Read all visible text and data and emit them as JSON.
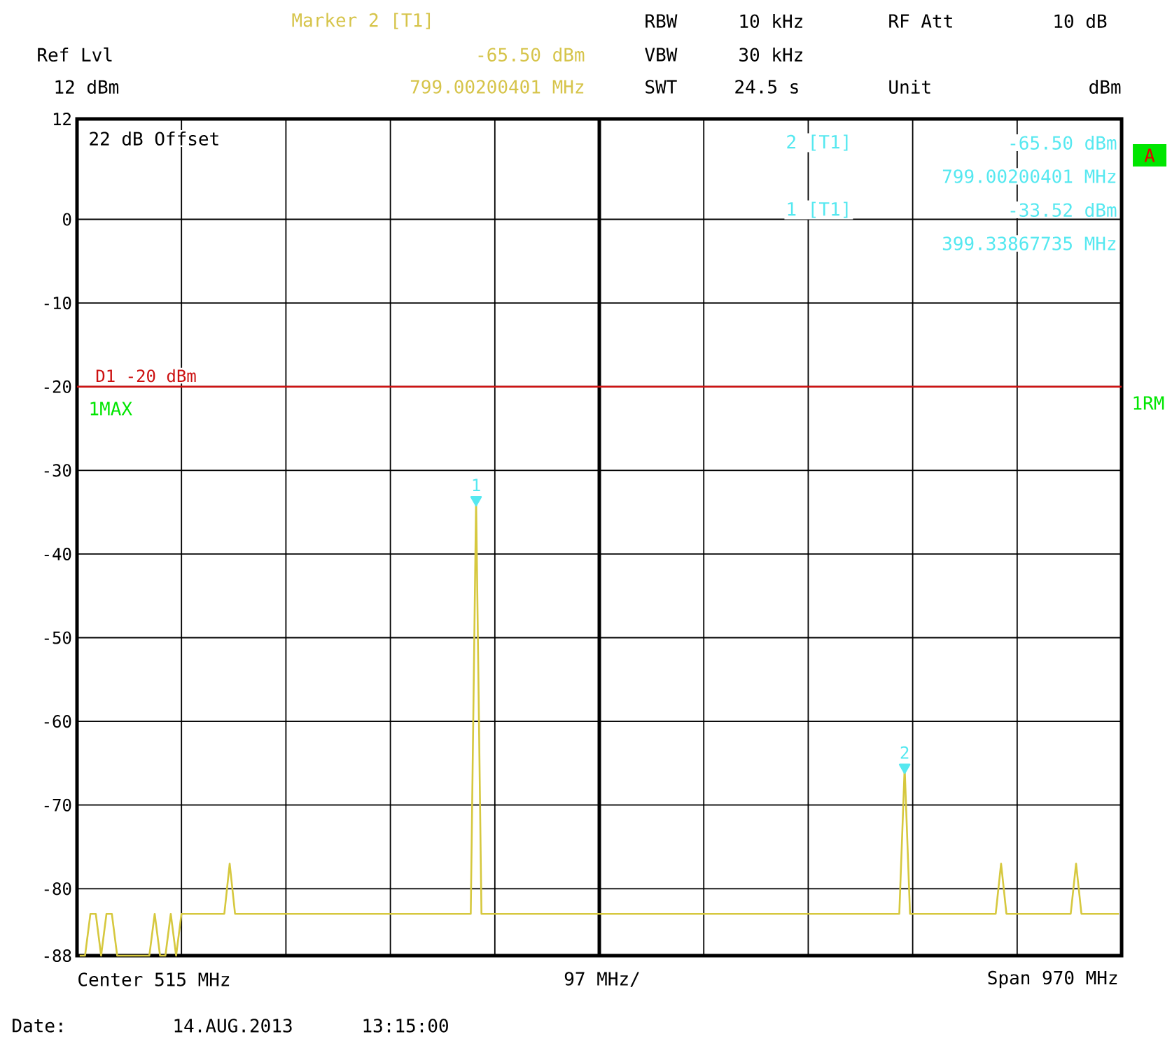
{
  "chart_data": {
    "type": "line",
    "ylim": [
      -88,
      12
    ],
    "yticks": [
      -88,
      -80,
      -70,
      -60,
      -50,
      -40,
      -30,
      -20,
      -10,
      0,
      12
    ],
    "tick_labels": "y",
    "grid": true,
    "categories": [
      null,
      null,
      null,
      null,
      null,
      null,
      null,
      null,
      null,
      null,
      null,
      null,
      null,
      null,
      null,
      null,
      null,
      null,
      null,
      null,
      null,
      null,
      null,
      null,
      null,
      null,
      null,
      null,
      null,
      null,
      null,
      null,
      null,
      null,
      null,
      null,
      null,
      null,
      null,
      null,
      null,
      null,
      null,
      null,
      null,
      null,
      null,
      null,
      null,
      null,
      null,
      null,
      null,
      null,
      null,
      null,
      null,
      null,
      null,
      null,
      null,
      null,
      null,
      null,
      null,
      null,
      null,
      null,
      null,
      null,
      null,
      null,
      null,
      null,
      null,
      null,
      null,
      null,
      null,
      null,
      null,
      null,
      null,
      null,
      null,
      null,
      null,
      null,
      null,
      null,
      null,
      null,
      null,
      null,
      null,
      null,
      null,
      null,
      null,
      null,
      null,
      null,
      null,
      null,
      null,
      null,
      null,
      null,
      null,
      null,
      null,
      null,
      null,
      null,
      null,
      null,
      null,
      null,
      null,
      null,
      null,
      null,
      null,
      null,
      null,
      null,
      null,
      null,
      null,
      null,
      null,
      null,
      null,
      null,
      null,
      null,
      null,
      null,
      null,
      null,
      null,
      null,
      null,
      null,
      null,
      null,
      null,
      null,
      null,
      null,
      null,
      null,
      null,
      null,
      null,
      null,
      null,
      null,
      null,
      null,
      null,
      null,
      null,
      null,
      null,
      null,
      null,
      null,
      null,
      null,
      null,
      null,
      null,
      null,
      null,
      null,
      null,
      null,
      null,
      null,
      null,
      null,
      null,
      null,
      null,
      null,
      null,
      null,
      null,
      null,
      null,
      null,
      null,
      null,
      null
    ],
    "series": [
      {
        "color": "#d6c83e",
        "values": [
          -88,
          -88,
          -83,
          -83,
          -88,
          -83,
          -83,
          -88,
          -88,
          -88,
          -88,
          -88,
          -88,
          -88,
          -83,
          -88,
          -88,
          -83,
          -88,
          -83,
          -83,
          -83,
          -83,
          -83,
          -83,
          -83,
          -83,
          -83,
          -77,
          -83,
          -83,
          -83,
          -83,
          -83,
          -83,
          -83,
          -83,
          -83,
          -83,
          -83,
          -83,
          -83,
          -83,
          -83,
          -83,
          -83,
          -83,
          -83,
          -83,
          -83,
          -83,
          -83,
          -83,
          -83,
          -83,
          -83,
          -83,
          -83,
          -83,
          -83,
          -83,
          -83,
          -83,
          -83,
          -83,
          -83,
          -83,
          -83,
          -83,
          -83,
          -83,
          -83,
          -83,
          -83,
          -33.52,
          -83,
          -83,
          -83,
          -83,
          -83,
          -83,
          -83,
          -83,
          -83,
          -83,
          -83,
          -83,
          -83,
          -83,
          -83,
          -83,
          -83,
          -83,
          -83,
          -83,
          -83,
          -83,
          -83,
          -83,
          -83,
          -83,
          -83,
          -83,
          -83,
          -83,
          -83,
          -83,
          -83,
          -83,
          -83,
          -83,
          -83,
          -83,
          -83,
          -83,
          -83,
          -83,
          -83,
          -83,
          -83,
          -83,
          -83,
          -83,
          -83,
          -83,
          -83,
          -83,
          -83,
          -83,
          -83,
          -83,
          -83,
          -83,
          -83,
          -83,
          -83,
          -83,
          -83,
          -83,
          -83,
          -83,
          -83,
          -83,
          -83,
          -83,
          -83,
          -83,
          -83,
          -83,
          -83,
          -83,
          -83,
          -83,
          -83,
          -65.5,
          -83,
          -83,
          -83,
          -83,
          -83,
          -83,
          -83,
          -83,
          -83,
          -83,
          -83,
          -83,
          -83,
          -83,
          -83,
          -83,
          -83,
          -77,
          -83,
          -83,
          -83,
          -83,
          -83,
          -83,
          -83,
          -83,
          -83,
          -83,
          -83,
          -83,
          -83,
          -77,
          -83,
          -83,
          -83,
          -83,
          -83,
          -83,
          -83,
          -83
        ]
      },
      {
        "type": "scatter",
        "color": "#55e8f0",
        "marker": "triangle",
        "values": [
          null,
          null,
          null,
          null,
          null,
          null,
          null,
          null,
          null,
          null,
          null,
          null,
          null,
          null,
          null,
          null,
          null,
          null,
          null,
          null,
          null,
          null,
          null,
          null,
          null,
          null,
          null,
          null,
          null,
          null,
          null,
          null,
          null,
          null,
          null,
          null,
          null,
          null,
          null,
          null,
          null,
          null,
          null,
          null,
          null,
          null,
          null,
          null,
          null,
          null,
          null,
          null,
          null,
          null,
          null,
          null,
          null,
          null,
          null,
          null,
          null,
          null,
          null,
          null,
          null,
          null,
          null,
          null,
          null,
          null,
          null,
          null,
          null,
          null,
          -33.52,
          null,
          null,
          null,
          null,
          null,
          null,
          null,
          null,
          null,
          null,
          null,
          null,
          null,
          null,
          null,
          null,
          null,
          null,
          null,
          null,
          null,
          null,
          null,
          null,
          null,
          null,
          null,
          null,
          null,
          null,
          null,
          null,
          null,
          null,
          null,
          null,
          null,
          null,
          null,
          null,
          null,
          null,
          null,
          null,
          null,
          null,
          null,
          null,
          null,
          null,
          null,
          null,
          null,
          null,
          null,
          null,
          null,
          null,
          null,
          null,
          null,
          null,
          null,
          null,
          null,
          null,
          null,
          null,
          null,
          null,
          null,
          null,
          null,
          null,
          null,
          null,
          null,
          null,
          null,
          -65.5,
          null,
          null,
          null,
          null,
          null,
          null,
          null,
          null,
          null,
          null,
          null,
          null,
          null,
          null,
          null,
          null,
          null,
          null,
          null,
          null,
          null,
          null,
          null,
          null,
          null,
          null,
          null,
          null,
          null,
          null,
          null,
          null,
          null,
          null,
          null,
          null,
          null,
          null,
          null,
          null
        ]
      }
    ],
    "ref_lines": [
      {
        "axis": "y",
        "value": -20,
        "label": "D1 -20 dBm",
        "color": "#cc1111"
      }
    ],
    "annotations": [
      {
        "text": "1",
        "y": -33.52
      },
      {
        "text": "2",
        "y": -65.5
      },
      "Marker 2 [T1]",
      "-65.50 dBm",
      "799.00200401 MHz",
      "Ref Lvl",
      "12 dBm",
      "RBW",
      "10 kHz",
      "VBW",
      "30 kHz",
      "SWT",
      "24.5 s",
      "RF Att",
      "10 dB",
      "Unit",
      "dBm",
      "22 dB Offset",
      "2 [T1]",
      "-65.50 dBm",
      "799.00200401 MHz",
      "1 [T1]",
      "-33.52 dBm",
      "399.33867735 MHz",
      "A",
      "1MAX",
      "1RM",
      "Center 515 MHz",
      "97 MHz/",
      "Span 970 MHz",
      "Date:",
      "14.AUG.2013",
      "13:15:00"
    ]
  }
}
